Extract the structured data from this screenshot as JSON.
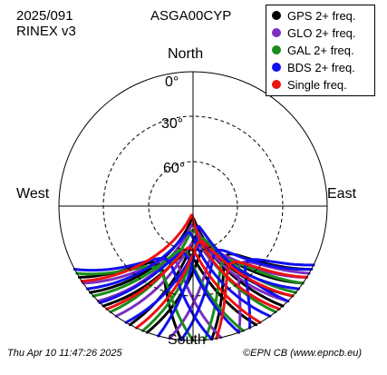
{
  "header": {
    "date": "2025/091",
    "rinex": "RINEX v3",
    "station": "ASGA00CYP"
  },
  "footer": {
    "timestamp": "Thu Apr 10 11:47:26 2025",
    "credit": "©EPN CB (www.epncb.eu)"
  },
  "chart_data": {
    "type": "polar-skyplot",
    "directions": {
      "north": "North",
      "south": "South",
      "east": "East",
      "west": "West"
    },
    "elevation_labels": [
      "0°",
      "30°",
      "60°"
    ],
    "elevation_rings_deg": [
      0,
      30,
      60
    ],
    "series": [
      {
        "name": "GPS 2+ freq.",
        "color": "#000000",
        "tracks": [
          {
            "az_start": -42,
            "az_end": 28,
            "max_el": 58
          },
          {
            "az_start": -28,
            "az_end": 42,
            "max_el": 70
          },
          {
            "az_start": -58,
            "az_end": -5,
            "max_el": 45
          },
          {
            "az_start": 8,
            "az_end": 62,
            "max_el": 50
          },
          {
            "az_start": -50,
            "az_end": 48,
            "max_el": 82
          },
          {
            "az_start": -20,
            "az_end": 55,
            "max_el": 62
          }
        ]
      },
      {
        "name": "GLO 2+ freq.",
        "color": "#7b2fbf",
        "tracks": [
          {
            "az_start": -35,
            "az_end": 40,
            "max_el": 66
          },
          {
            "az_start": -55,
            "az_end": 12,
            "max_el": 52
          },
          {
            "az_start": -10,
            "az_end": 58,
            "max_el": 55
          },
          {
            "az_start": -45,
            "az_end": 45,
            "max_el": 78
          },
          {
            "az_start": 20,
            "az_end": 60,
            "max_el": 40
          }
        ]
      },
      {
        "name": "GAL 2+ freq.",
        "color": "#1a8c1a",
        "tracks": [
          {
            "az_start": -48,
            "az_end": 22,
            "max_el": 60
          },
          {
            "az_start": -22,
            "az_end": 50,
            "max_el": 68
          },
          {
            "az_start": -60,
            "az_end": 0,
            "max_el": 42
          },
          {
            "az_start": 5,
            "az_end": 55,
            "max_el": 48
          },
          {
            "az_start": -38,
            "az_end": 38,
            "max_el": 74
          }
        ]
      },
      {
        "name": "BDS 2+ freq.",
        "color": "#1010ee",
        "tracks": [
          {
            "az_start": -52,
            "az_end": 35,
            "max_el": 72
          },
          {
            "az_start": -30,
            "az_end": 52,
            "max_el": 64
          },
          {
            "az_start": -62,
            "az_end": 8,
            "max_el": 50
          },
          {
            "az_start": -5,
            "az_end": 62,
            "max_el": 56
          },
          {
            "az_start": -44,
            "az_end": 20,
            "max_el": 58
          },
          {
            "az_start": -15,
            "az_end": 45,
            "max_el": 76
          },
          {
            "az_start": 25,
            "az_end": 64,
            "max_el": 38
          }
        ]
      },
      {
        "name": "Single freq.",
        "color": "#ee1111",
        "tracks": [
          {
            "az_start": -40,
            "az_end": 30,
            "max_el": 62
          },
          {
            "az_start": -25,
            "az_end": 48,
            "max_el": 66
          },
          {
            "az_start": -56,
            "az_end": 40,
            "max_el": 84
          },
          {
            "az_start": 10,
            "az_end": 58,
            "max_el": 44
          }
        ]
      }
    ]
  }
}
